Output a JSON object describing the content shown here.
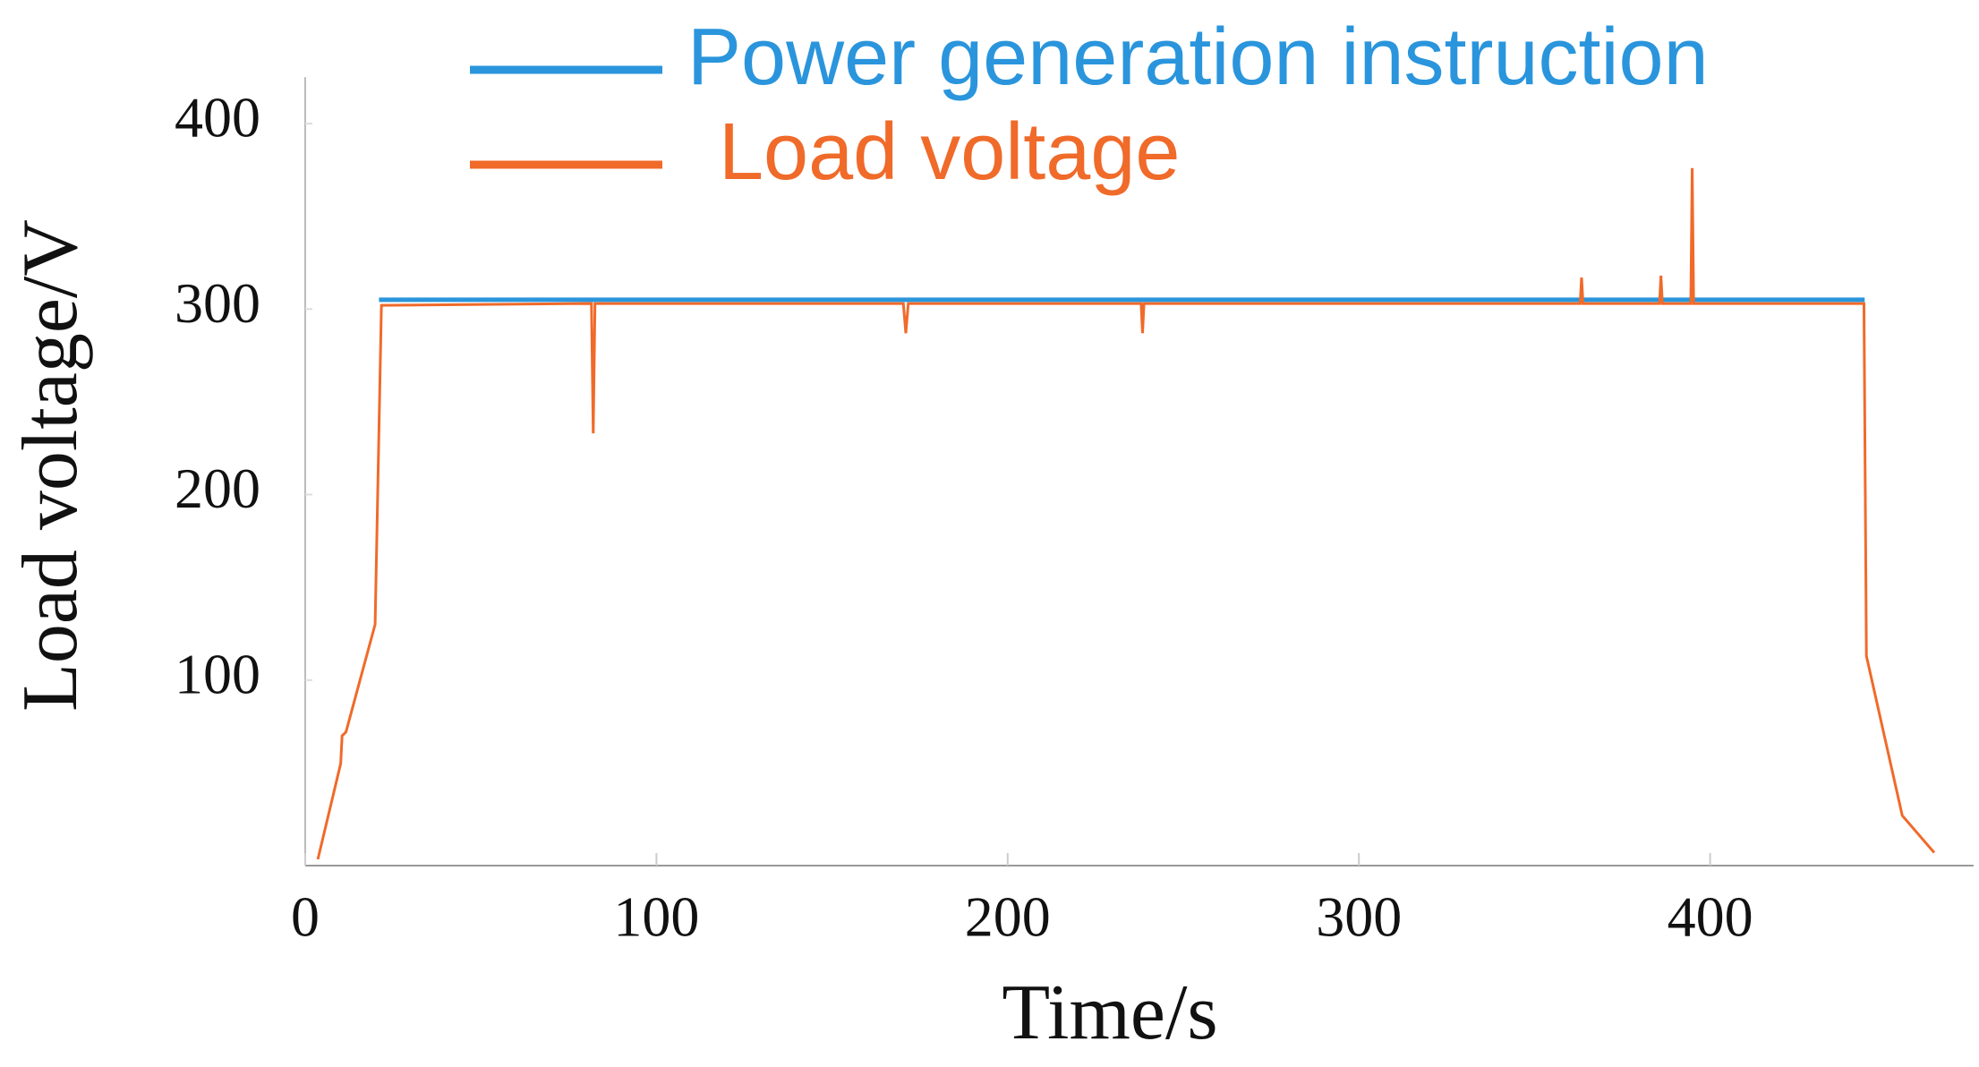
{
  "chart_data": {
    "type": "line",
    "xlabel": "Time/s",
    "ylabel": "Load voltage/V",
    "xlim": [
      0,
      475
    ],
    "ylim": [
      0,
      425
    ],
    "xticks": [
      0,
      100,
      200,
      300,
      400
    ],
    "yticks": [
      100,
      200,
      300,
      400
    ],
    "series": [
      {
        "name": "Power generation instruction",
        "color": "#2a95dc",
        "x": [
          21,
          444
        ],
        "values": [
          305,
          305
        ]
      },
      {
        "name": "Load voltage",
        "color": "#f06a2a",
        "x": [
          3.6,
          10.1,
          10.5,
          11.6,
          19.9,
          21.7,
          81.5,
          82,
          82.5,
          170.3,
          171,
          171.7,
          238,
          238.4,
          238.8,
          363,
          363.4,
          363.8,
          385.6,
          386,
          386.4,
          394.5,
          394.9,
          395.3,
          443.8,
          444.5,
          454.7,
          463.8
        ],
        "values": [
          3.4,
          55,
          70,
          72,
          130,
          302,
          303,
          233,
          303,
          303,
          287,
          303,
          303,
          287,
          303,
          303,
          317,
          303,
          303,
          318,
          303,
          303,
          376,
          303,
          303,
          113,
          27,
          7
        ]
      }
    ]
  }
}
